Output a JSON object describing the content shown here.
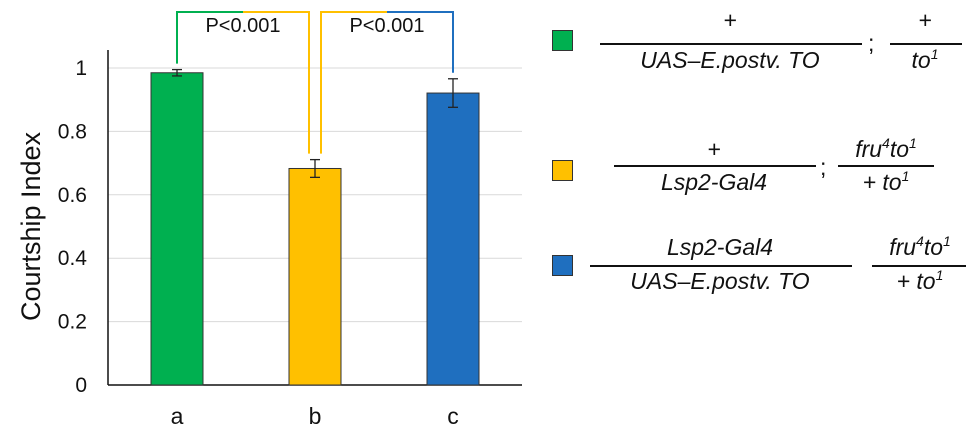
{
  "chart_data": {
    "type": "bar",
    "ylabel": "Courtship Index",
    "ylim": [
      0,
      1
    ],
    "yticks": [
      "0",
      "0.2",
      "0.4",
      "0.6",
      "0.8",
      "1"
    ],
    "categories": [
      "a",
      "b",
      "c"
    ],
    "values": [
      0.985,
      0.683,
      0.921
    ],
    "errors": [
      0.01,
      0.028,
      0.045
    ],
    "colors": [
      "#00b050",
      "#ffc000",
      "#1f6fbf"
    ],
    "grid": true,
    "annotations": [
      {
        "between": [
          "a",
          "b"
        ],
        "label": "P<0.001"
      },
      {
        "between": [
          "b",
          "c"
        ],
        "label": "P<0.001"
      }
    ]
  },
  "legend": {
    "a": {
      "num1": "+",
      "den1": "UAS–E.postv. TO",
      "sep": ";",
      "num2": "+",
      "den2_main": "to",
      "den2_sup": "1"
    },
    "b": {
      "num1": "+",
      "den1": "Lsp2-Gal4",
      "sep": ";",
      "num2_a": "fru",
      "num2_sup1": "4",
      "num2_b": "to",
      "num2_sup2": "1",
      "den2_main": "+  to",
      "den2_sup": "1"
    },
    "c": {
      "num1": "Lsp2-Gal4",
      "den1": "UAS–E.postv. TO",
      "num2_a": "fru",
      "num2_sup1": "4",
      "num2_b": "to",
      "num2_sup2": "1",
      "den2_main": "+  to",
      "den2_sup": "1"
    }
  }
}
